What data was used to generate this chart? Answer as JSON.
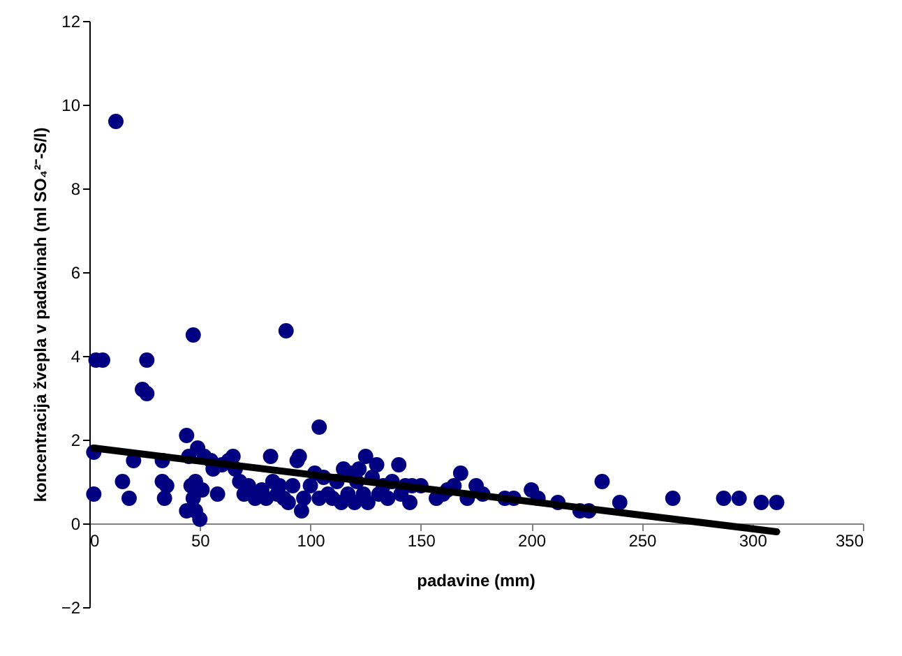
{
  "chart_data": {
    "type": "scatter",
    "xlabel": "padavine (mm)",
    "ylabel": "koncentracija žvepla v padavinah (ml SO₄²⁻-S/l)",
    "xlim": [
      0,
      350
    ],
    "xticks": [
      0,
      50,
      100,
      150,
      200,
      250,
      300,
      350
    ],
    "ylim": [
      -2,
      12
    ],
    "yticks": [
      -2,
      0,
      2,
      4,
      6,
      8,
      10,
      12
    ],
    "marker": "circle",
    "grid": false,
    "series": [
      {
        "color": "#000080",
        "x": [
          12,
          3,
          6,
          26,
          24,
          26,
          47,
          89,
          104,
          44,
          2,
          2,
          15,
          18,
          20,
          33,
          33,
          34,
          35,
          44,
          45,
          46,
          47,
          48,
          48,
          49,
          50,
          51,
          52,
          55,
          56,
          58,
          60,
          63,
          65,
          66,
          68,
          70,
          72,
          75,
          78,
          80,
          82,
          83,
          85,
          86,
          88,
          90,
          92,
          94,
          95,
          96,
          97,
          100,
          102,
          104,
          106,
          108,
          110,
          112,
          114,
          115,
          117,
          118,
          120,
          121,
          122,
          124,
          125,
          126,
          128,
          130,
          131,
          133,
          135,
          137,
          140,
          141,
          143,
          145,
          146,
          150,
          157,
          160,
          162,
          165,
          168,
          171,
          175,
          178,
          188,
          192,
          200,
          203,
          212,
          222,
          226,
          232,
          240,
          264,
          287,
          294,
          304,
          311
        ],
        "values": [
          9.6,
          3.9,
          3.9,
          3.9,
          3.2,
          3.1,
          4.5,
          4.6,
          2.3,
          2.1,
          1.7,
          0.7,
          1.0,
          0.6,
          1.5,
          1.5,
          1.0,
          0.6,
          0.9,
          0.3,
          1.6,
          0.9,
          0.6,
          1.0,
          0.3,
          1.8,
          0.1,
          0.8,
          1.6,
          1.5,
          1.3,
          0.7,
          1.4,
          1.5,
          1.6,
          1.3,
          1.0,
          0.7,
          0.9,
          0.6,
          0.8,
          0.6,
          1.6,
          1.0,
          0.7,
          0.9,
          0.6,
          0.5,
          0.9,
          1.5,
          1.6,
          0.3,
          0.6,
          0.9,
          1.2,
          0.6,
          1.1,
          0.7,
          0.6,
          1.0,
          0.5,
          1.3,
          0.7,
          1.2,
          0.5,
          1.0,
          1.3,
          0.7,
          1.6,
          0.5,
          1.1,
          1.4,
          0.7,
          0.9,
          0.6,
          1.0,
          1.4,
          0.7,
          0.9,
          0.5,
          0.9,
          0.9,
          0.6,
          0.7,
          0.8,
          0.9,
          1.2,
          0.6,
          0.9,
          0.7,
          0.6,
          0.6,
          0.8,
          0.6,
          0.5,
          0.3,
          0.3,
          1.0,
          0.5,
          0.6,
          0.6,
          0.6,
          0.5,
          0.5
        ]
      },
      {
        "type": "line",
        "marker": "none",
        "color": "#000000",
        "x": [
          2,
          311
        ],
        "values": [
          1.8,
          -0.2
        ]
      }
    ]
  }
}
